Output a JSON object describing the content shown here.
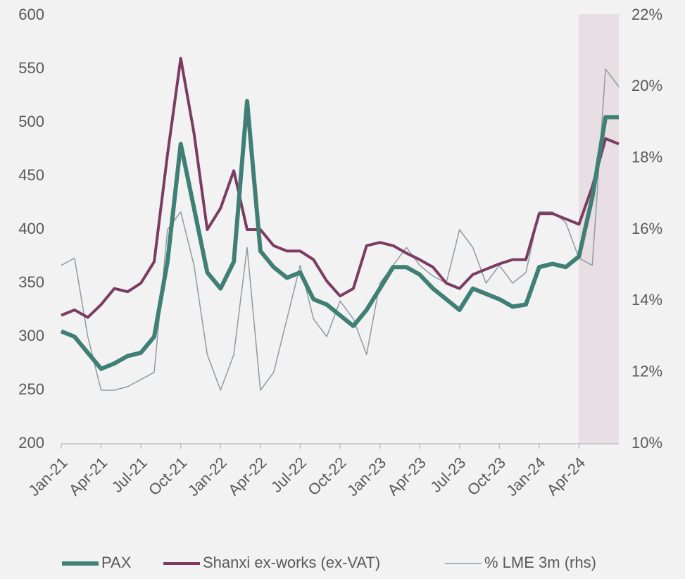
{
  "chart_data": {
    "type": "line",
    "categories": [
      "Jan-21",
      null,
      null,
      "Apr-21",
      null,
      null,
      "Jul-21",
      null,
      null,
      "Oct-21",
      null,
      null,
      "Jan-22",
      null,
      null,
      "Apr-22",
      null,
      null,
      "Jul-22",
      null,
      null,
      "Oct-22",
      null,
      null,
      "Jan-23",
      null,
      null,
      "Apr-23",
      null,
      null,
      "Jul-23",
      null,
      null,
      "Oct-23",
      null,
      null,
      "Jan-24",
      null,
      null,
      "Apr-24",
      null,
      null,
      null
    ],
    "series": [
      {
        "name": "PAX",
        "color": "#3f7f76",
        "values": [
          305,
          300,
          285,
          270,
          275,
          282,
          285,
          300,
          370,
          480,
          420,
          360,
          345,
          370,
          520,
          380,
          365,
          355,
          360,
          335,
          330,
          320,
          310,
          325,
          345,
          365,
          365,
          358,
          345,
          335,
          325,
          345,
          340,
          335,
          328,
          330,
          365,
          368,
          365,
          375,
          430,
          505,
          505
        ]
      },
      {
        "name": "Shanxi ex-works (ex-VAT)",
        "color": "#7b3b62",
        "values": [
          320,
          325,
          318,
          330,
          345,
          342,
          350,
          370,
          470,
          560,
          490,
          400,
          420,
          455,
          400,
          400,
          385,
          380,
          380,
          372,
          352,
          338,
          345,
          385,
          388,
          385,
          378,
          372,
          365,
          350,
          345,
          358,
          363,
          368,
          372,
          372,
          415,
          415,
          410,
          405,
          440,
          485,
          480
        ]
      },
      {
        "name": "% LME 3m (rhs)",
        "color": "#8e9aa3",
        "axis": "y2",
        "values": [
          15,
          15.2,
          13,
          11.5,
          11.5,
          11.6,
          11.8,
          12,
          16,
          16.5,
          15,
          12.5,
          11.5,
          12.5,
          15.5,
          11.5,
          12,
          13.5,
          15,
          13.5,
          13,
          14,
          13.5,
          12.5,
          14.5,
          15,
          15.5,
          15,
          14.7,
          14.5,
          16,
          15.5,
          14.5,
          15,
          14.5,
          14.8,
          16.5,
          16.5,
          16.2,
          15.2,
          15,
          20.5,
          20
        ]
      }
    ],
    "ylim": [
      200,
      600
    ],
    "yticks": [
      200,
      250,
      300,
      350,
      400,
      450,
      500,
      550,
      600
    ],
    "y2lim": [
      10,
      22
    ],
    "y2ticks": [
      {
        "value": 10,
        "label": "10%"
      },
      {
        "value": 12,
        "label": "12%"
      },
      {
        "value": 14,
        "label": "14%"
      },
      {
        "value": 16,
        "label": "16%"
      },
      {
        "value": 18,
        "label": "18%"
      },
      {
        "value": 20,
        "label": "20%"
      },
      {
        "value": 22,
        "label": "22%"
      }
    ],
    "grid": false,
    "legend": "bottom"
  }
}
